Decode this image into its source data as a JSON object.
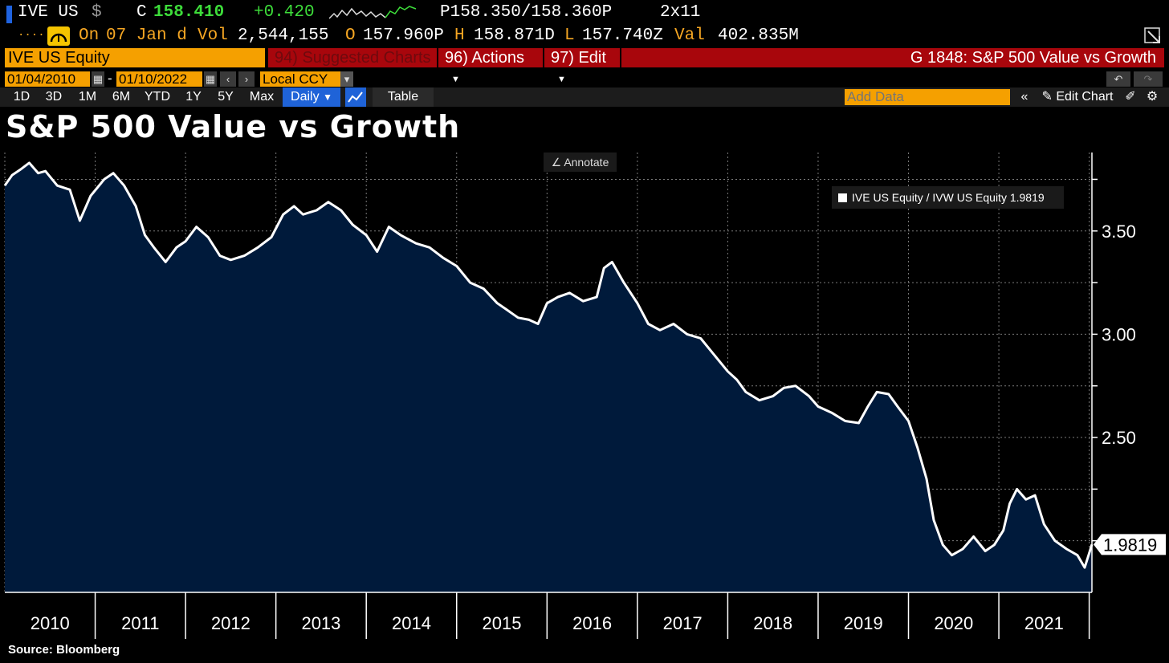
{
  "quote": {
    "ticker": "IVE US",
    "currency_symbol": "$",
    "close_label": "C",
    "close_value": "158.410",
    "change": "+0.420",
    "bid_ask": "P158.350/158.360P",
    "size": "2x11",
    "on_label": "On",
    "on_date": "07 Jan d",
    "vol_label": "Vol",
    "vol_value": "2,544,155",
    "open_label": "O",
    "open_value": "157.960P",
    "high_label": "H",
    "high_value": "158.871D",
    "low_label": "L",
    "low_value": "157.740Z",
    "val_label": "Val",
    "val_value": "402.835M",
    "dots": "...."
  },
  "toolbar": {
    "security": "IVE US Equity",
    "suggested_charts": "94) Suggested Charts",
    "actions": "96) Actions",
    "edit": "97) Edit",
    "chart_id": "G 1848: S&P 500 Value vs Growth"
  },
  "range": {
    "start": "01/04/2010",
    "dash": "-",
    "end": "01/10/2022",
    "currency": "Local CCY"
  },
  "periods": [
    "1D",
    "3D",
    "1M",
    "6M",
    "YTD",
    "1Y",
    "5Y",
    "Max"
  ],
  "frequency": "Daily",
  "table_label": "Table",
  "add_data_placeholder": "Add Data",
  "edit_chart_label": "Edit Chart",
  "annotate_label": "Annotate",
  "legend": {
    "label": "IVE US Equity / IVW US Equity 1.9819",
    "color": "#ffffff"
  },
  "source": "Source: Bloomberg",
  "colors": {
    "accent_orange": "#f5a000",
    "toolbar_red": "#a8060c",
    "area_fill": "#001a3b",
    "line": "#ffffff"
  },
  "chart_data": {
    "type": "area",
    "title": "S&P 500 Value vs Growth",
    "xlabel": "",
    "ylabel": "",
    "x_ticks": [
      "2010",
      "2011",
      "2012",
      "2013",
      "2014",
      "2015",
      "2016",
      "2017",
      "2018",
      "2019",
      "2020",
      "2021"
    ],
    "y_ticks": [
      3.5,
      3.0,
      2.5
    ],
    "ylim": [
      1.75,
      3.88
    ],
    "xlim": [
      2010.0,
      2022.03
    ],
    "grid": true,
    "legend_position": "top-right",
    "last_value": "1.9819",
    "series": [
      {
        "name": "IVE US Equity / IVW US Equity",
        "x": [
          2010.0,
          2010.08,
          2010.18,
          2010.27,
          2010.37,
          2010.45,
          2010.58,
          2010.72,
          2010.83,
          2010.95,
          2011.1,
          2011.2,
          2011.32,
          2011.45,
          2011.55,
          2011.65,
          2011.78,
          2011.9,
          2012.0,
          2012.12,
          2012.25,
          2012.38,
          2012.5,
          2012.65,
          2012.8,
          2012.95,
          2013.08,
          2013.2,
          2013.3,
          2013.45,
          2013.58,
          2013.72,
          2013.85,
          2014.0,
          2014.12,
          2014.25,
          2014.38,
          2014.55,
          2014.7,
          2014.85,
          2015.0,
          2015.15,
          2015.3,
          2015.45,
          2015.55,
          2015.68,
          2015.8,
          2015.9,
          2016.0,
          2016.12,
          2016.25,
          2016.4,
          2016.55,
          2016.63,
          2016.72,
          2016.85,
          2017.0,
          2017.12,
          2017.25,
          2017.4,
          2017.55,
          2017.7,
          2017.85,
          2018.0,
          2018.1,
          2018.2,
          2018.35,
          2018.5,
          2018.62,
          2018.75,
          2018.9,
          2019.0,
          2019.15,
          2019.3,
          2019.45,
          2019.55,
          2019.65,
          2019.78,
          2019.88,
          2020.0,
          2020.1,
          2020.2,
          2020.28,
          2020.38,
          2020.48,
          2020.6,
          2020.72,
          2020.85,
          2020.95,
          2021.05,
          2021.12,
          2021.2,
          2021.3,
          2021.4,
          2021.5,
          2021.62,
          2021.75,
          2021.87,
          2021.95,
          2022.03
        ],
        "y": [
          3.72,
          3.77,
          3.8,
          3.83,
          3.78,
          3.79,
          3.72,
          3.7,
          3.55,
          3.67,
          3.75,
          3.78,
          3.72,
          3.62,
          3.48,
          3.42,
          3.35,
          3.42,
          3.45,
          3.52,
          3.47,
          3.38,
          3.36,
          3.38,
          3.42,
          3.47,
          3.58,
          3.62,
          3.58,
          3.6,
          3.64,
          3.6,
          3.53,
          3.48,
          3.4,
          3.52,
          3.48,
          3.44,
          3.42,
          3.37,
          3.33,
          3.25,
          3.22,
          3.15,
          3.12,
          3.08,
          3.07,
          3.05,
          3.15,
          3.18,
          3.2,
          3.16,
          3.18,
          3.32,
          3.35,
          3.25,
          3.15,
          3.05,
          3.02,
          3.05,
          3.0,
          2.98,
          2.9,
          2.82,
          2.78,
          2.72,
          2.68,
          2.7,
          2.74,
          2.75,
          2.7,
          2.65,
          2.62,
          2.58,
          2.57,
          2.65,
          2.72,
          2.71,
          2.65,
          2.58,
          2.45,
          2.3,
          2.1,
          1.98,
          1.93,
          1.96,
          2.02,
          1.95,
          1.98,
          2.05,
          2.18,
          2.25,
          2.2,
          2.22,
          2.08,
          2.0,
          1.96,
          1.93,
          1.87,
          1.9819
        ]
      }
    ]
  }
}
